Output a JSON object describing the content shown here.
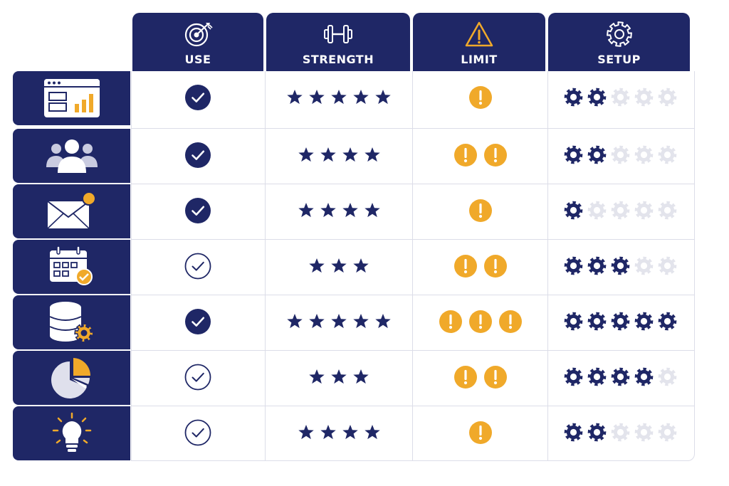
{
  "columns": [
    {
      "key": "use",
      "label": "USE",
      "icon": "target-arrow-icon"
    },
    {
      "key": "strength",
      "label": "STRENGTH",
      "icon": "dumbbell-icon"
    },
    {
      "key": "limit",
      "label": "LIMIT",
      "icon": "warning-triangle-icon"
    },
    {
      "key": "setup",
      "label": "SETUP",
      "icon": "gear-icon"
    }
  ],
  "rows": [
    {
      "icon": "dashboard-chart-icon",
      "use": "filled",
      "strength": 5,
      "limit": 1,
      "setup": 2
    },
    {
      "icon": "user-group-icon",
      "use": "filled",
      "strength": 4,
      "limit": 2,
      "setup": 2
    },
    {
      "icon": "email-notification-icon",
      "use": "filled",
      "strength": 4,
      "limit": 1,
      "setup": 1
    },
    {
      "icon": "calendar-check-icon",
      "use": "outline",
      "strength": 3,
      "limit": 2,
      "setup": 3
    },
    {
      "icon": "database-settings-icon",
      "use": "filled",
      "strength": 5,
      "limit": 3,
      "setup": 5
    },
    {
      "icon": "pie-chart-icon",
      "use": "outline",
      "strength": 3,
      "limit": 2,
      "setup": 4
    },
    {
      "icon": "lightbulb-icon",
      "use": "outline",
      "strength": 4,
      "limit": 1,
      "setup": 2
    }
  ],
  "scale": {
    "setup_max": 5
  },
  "colors": {
    "navy": "#1f2766",
    "amber": "#f0a92a",
    "muted": "#e3e4ec",
    "grid": "#dcdde8"
  }
}
